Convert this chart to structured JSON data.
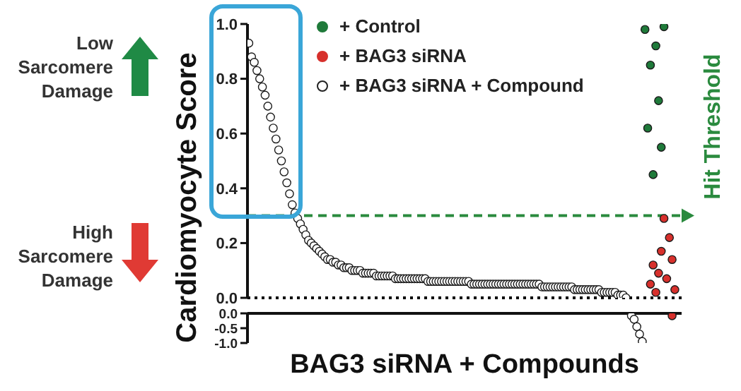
{
  "chart_data": [
    {
      "type": "scatter",
      "ylabel": "Cardiomyocyte Score",
      "annotations": [
        "Low Sarcomere Damage",
        "High Sarcomere Damage"
      ],
      "categories": [
        null,
        null,
        null,
        null,
        null,
        null,
        null,
        null,
        null,
        null,
        null,
        null,
        null,
        null,
        null,
        null,
        null,
        null,
        null,
        null,
        null,
        null,
        null,
        null,
        null,
        null,
        null,
        null,
        null,
        null,
        null,
        null,
        null,
        null,
        null,
        null,
        null,
        null,
        null,
        null,
        null,
        null,
        null,
        null,
        null,
        null,
        null,
        null,
        null,
        null,
        null,
        null,
        null,
        null,
        null,
        null,
        null,
        null,
        null,
        null,
        null,
        null,
        null,
        null,
        null,
        null,
        null,
        null,
        null,
        null,
        null,
        null,
        null,
        null,
        null,
        null,
        null,
        null,
        null,
        null,
        null,
        null,
        null,
        null,
        null,
        null,
        null,
        null,
        null,
        null,
        null,
        null,
        null,
        null,
        null,
        null,
        null,
        null,
        null,
        null,
        null,
        null,
        null,
        null,
        null,
        null,
        null,
        null,
        null,
        null,
        null,
        null,
        null,
        null,
        null,
        null,
        null,
        null,
        null,
        null,
        null,
        null,
        null,
        null,
        null,
        null,
        null,
        null,
        null,
        null,
        null,
        null,
        null,
        null,
        null,
        null,
        null,
        null,
        null,
        null,
        null,
        null,
        null,
        null,
        null,
        null,
        null,
        null,
        null,
        null,
        null,
        null,
        null,
        null,
        null,
        null,
        null,
        null,
        null,
        null
      ],
      "series": [
        {
          "name": "+ Control",
          "color": "#1f7a3a",
          "values": [
            null,
            null,
            null,
            null,
            null,
            null,
            null,
            null,
            null,
            null,
            null,
            null,
            null,
            null,
            null,
            null,
            null,
            null,
            null,
            null,
            null,
            null,
            null,
            null,
            null,
            null,
            null,
            null,
            null,
            null,
            null,
            null,
            null,
            null,
            null,
            null,
            null,
            null,
            null,
            null,
            null,
            null,
            null,
            null,
            null,
            null,
            null,
            null,
            null,
            null,
            null,
            null,
            null,
            null,
            null,
            null,
            null,
            null,
            null,
            null,
            null,
            null,
            null,
            null,
            null,
            null,
            null,
            null,
            null,
            null,
            null,
            null,
            null,
            null,
            null,
            null,
            null,
            null,
            null,
            null,
            null,
            null,
            null,
            null,
            null,
            null,
            null,
            null,
            null,
            null,
            null,
            null,
            null,
            null,
            null,
            null,
            null,
            null,
            null,
            null,
            null,
            null,
            null,
            null,
            null,
            null,
            null,
            null,
            null,
            null,
            null,
            null,
            null,
            null,
            null,
            null,
            null,
            null,
            null,
            null,
            null,
            null,
            null,
            null,
            null,
            null,
            null,
            null,
            null,
            null,
            null,
            null,
            null,
            null,
            null,
            null,
            null,
            null,
            null,
            null,
            null,
            null,
            null,
            null,
            null,
            null,
            0.98,
            0.62,
            0.85,
            0.45,
            0.92,
            0.72,
            0.55,
            0.99,
            null,
            null,
            null,
            null,
            null,
            null
          ]
        },
        {
          "name": "+ BAG3 siRNA",
          "color": "#d7302c",
          "values": [
            null,
            null,
            null,
            null,
            null,
            null,
            null,
            null,
            null,
            null,
            null,
            null,
            null,
            null,
            null,
            null,
            null,
            null,
            null,
            null,
            null,
            null,
            null,
            null,
            null,
            null,
            null,
            null,
            null,
            null,
            null,
            null,
            null,
            null,
            null,
            null,
            null,
            null,
            null,
            null,
            null,
            null,
            null,
            null,
            null,
            null,
            null,
            null,
            null,
            null,
            null,
            null,
            null,
            null,
            null,
            null,
            null,
            null,
            null,
            null,
            null,
            null,
            null,
            null,
            null,
            null,
            null,
            null,
            null,
            null,
            null,
            null,
            null,
            null,
            null,
            null,
            null,
            null,
            null,
            null,
            null,
            null,
            null,
            null,
            null,
            null,
            null,
            null,
            null,
            null,
            null,
            null,
            null,
            null,
            null,
            null,
            null,
            null,
            null,
            null,
            null,
            null,
            null,
            null,
            null,
            null,
            null,
            null,
            null,
            null,
            null,
            null,
            null,
            null,
            null,
            null,
            null,
            null,
            null,
            null,
            null,
            null,
            null,
            null,
            null,
            null,
            null,
            null,
            null,
            null,
            null,
            null,
            null,
            null,
            null,
            null,
            null,
            null,
            null,
            null,
            null,
            null,
            null,
            null,
            null,
            null,
            null,
            null,
            0.05,
            0.12,
            0.02,
            0.09,
            0.17,
            0.29,
            0.07,
            0.22,
            0.14,
            0.03,
            null,
            null
          ]
        },
        {
          "name": "+ BAG3 siRNA + Compound",
          "color": "#ffffff",
          "values": [
            0.93,
            0.88,
            0.86,
            0.83,
            0.8,
            0.77,
            0.74,
            0.7,
            0.66,
            0.62,
            0.58,
            0.54,
            0.5,
            0.46,
            0.42,
            0.38,
            0.34,
            0.31,
            0.29,
            0.27,
            0.25,
            0.23,
            0.21,
            0.2,
            0.19,
            0.18,
            0.17,
            0.16,
            0.15,
            0.14,
            0.14,
            0.13,
            0.13,
            0.12,
            0.12,
            0.11,
            0.11,
            0.11,
            0.1,
            0.1,
            0.1,
            0.1,
            0.09,
            0.09,
            0.09,
            0.09,
            0.09,
            0.08,
            0.08,
            0.08,
            0.08,
            0.08,
            0.08,
            0.08,
            0.07,
            0.07,
            0.07,
            0.07,
            0.07,
            0.07,
            0.07,
            0.07,
            0.07,
            0.07,
            0.07,
            0.07,
            0.06,
            0.06,
            0.06,
            0.06,
            0.06,
            0.06,
            0.06,
            0.06,
            0.06,
            0.06,
            0.06,
            0.06,
            0.06,
            0.06,
            0.06,
            0.06,
            0.05,
            0.05,
            0.05,
            0.05,
            0.05,
            0.05,
            0.05,
            0.05,
            0.05,
            0.05,
            0.05,
            0.05,
            0.05,
            0.05,
            0.05,
            0.05,
            0.05,
            0.05,
            0.05,
            0.05,
            0.05,
            0.05,
            0.05,
            0.05,
            0.05,
            0.05,
            0.04,
            0.04,
            0.04,
            0.04,
            0.04,
            0.04,
            0.04,
            0.04,
            0.04,
            0.04,
            0.04,
            0.04,
            0.03,
            0.03,
            0.03,
            0.03,
            0.03,
            0.03,
            0.03,
            0.03,
            0.03,
            0.03,
            0.02,
            0.02,
            0.02,
            0.02,
            0.02,
            0.02,
            0.01,
            0.01,
            0.01,
            0,
            null,
            null,
            null,
            null,
            null,
            null,
            null,
            null,
            null,
            null,
            null,
            null,
            null,
            null,
            null,
            null,
            null,
            null,
            null,
            null
          ]
        }
      ],
      "ylim": [
        0,
        1
      ],
      "yticks": [
        {
          "value": 0,
          "label": "0.0"
        },
        0.2,
        0.4,
        0.6,
        0.8,
        {
          "value": 1,
          "label": "1.0"
        }
      ],
      "ref_lines": [
        {
          "axis": "y",
          "value": 0,
          "line_style": "dotted",
          "color": "#000000"
        },
        {
          "axis": "y",
          "value": 0.3,
          "label": "Hit Threshold",
          "line_style": "dashed",
          "color": "#2a8a3e"
        }
      ],
      "marker": "circle",
      "grid": false,
      "legend": "top"
    },
    {
      "type": "scatter",
      "xlabel": "BAG3 siRNA + Compounds",
      "categories": [
        null,
        null,
        null,
        null,
        null,
        null,
        null,
        null,
        null,
        null,
        null,
        null,
        null,
        null,
        null,
        null,
        null,
        null,
        null,
        null,
        null,
        null,
        null,
        null,
        null,
        null,
        null,
        null,
        null,
        null,
        null,
        null,
        null,
        null,
        null,
        null,
        null,
        null,
        null,
        null,
        null,
        null,
        null,
        null,
        null,
        null,
        null,
        null,
        null,
        null,
        null,
        null,
        null,
        null,
        null,
        null,
        null,
        null,
        null,
        null,
        null,
        null,
        null,
        null,
        null,
        null,
        null,
        null,
        null,
        null,
        null,
        null,
        null,
        null,
        null,
        null,
        null,
        null,
        null,
        null,
        null,
        null,
        null,
        null,
        null,
        null,
        null,
        null,
        null,
        null,
        null,
        null,
        null,
        null,
        null,
        null,
        null,
        null,
        null,
        null,
        null,
        null,
        null,
        null,
        null,
        null,
        null,
        null,
        null,
        null,
        null,
        null,
        null,
        null,
        null,
        null,
        null,
        null,
        null,
        null,
        null,
        null,
        null,
        null,
        null,
        null,
        null,
        null,
        null,
        null,
        null,
        null,
        null,
        null,
        null,
        null,
        null,
        null,
        null,
        null,
        null,
        null,
        null,
        null,
        null,
        null,
        null,
        null,
        null,
        null,
        null,
        null,
        null,
        null,
        null,
        null,
        null,
        null,
        null,
        null
      ],
      "series": [
        {
          "color": "#d7302c",
          "values": [
            null,
            null,
            null,
            null,
            null,
            null,
            null,
            null,
            null,
            null,
            null,
            null,
            null,
            null,
            null,
            null,
            null,
            null,
            null,
            null,
            null,
            null,
            null,
            null,
            null,
            null,
            null,
            null,
            null,
            null,
            null,
            null,
            null,
            null,
            null,
            null,
            null,
            null,
            null,
            null,
            null,
            null,
            null,
            null,
            null,
            null,
            null,
            null,
            null,
            null,
            null,
            null,
            null,
            null,
            null,
            null,
            null,
            null,
            null,
            null,
            null,
            null,
            null,
            null,
            null,
            null,
            null,
            null,
            null,
            null,
            null,
            null,
            null,
            null,
            null,
            null,
            null,
            null,
            null,
            null,
            null,
            null,
            null,
            null,
            null,
            null,
            null,
            null,
            null,
            null,
            null,
            null,
            null,
            null,
            null,
            null,
            null,
            null,
            null,
            null,
            null,
            null,
            null,
            null,
            null,
            null,
            null,
            null,
            null,
            null,
            null,
            null,
            null,
            null,
            null,
            null,
            null,
            null,
            null,
            null,
            null,
            null,
            null,
            null,
            null,
            null,
            null,
            null,
            null,
            null,
            null,
            null,
            null,
            null,
            null,
            null,
            null,
            null,
            null,
            null,
            null,
            null,
            null,
            null,
            null,
            null,
            null,
            null,
            null,
            null,
            null,
            null,
            null,
            null,
            null,
            null,
            -0.08,
            null,
            null,
            null
          ]
        },
        {
          "color": "#ffffff",
          "values": [
            null,
            null,
            null,
            null,
            null,
            null,
            null,
            null,
            null,
            null,
            null,
            null,
            null,
            null,
            null,
            null,
            null,
            null,
            null,
            null,
            null,
            null,
            null,
            null,
            null,
            null,
            null,
            null,
            null,
            null,
            null,
            null,
            null,
            null,
            null,
            null,
            null,
            null,
            null,
            null,
            null,
            null,
            null,
            null,
            null,
            null,
            null,
            null,
            null,
            null,
            null,
            null,
            null,
            null,
            null,
            null,
            null,
            null,
            null,
            null,
            null,
            null,
            null,
            null,
            null,
            null,
            null,
            null,
            null,
            null,
            null,
            null,
            null,
            null,
            null,
            null,
            null,
            null,
            null,
            null,
            null,
            null,
            null,
            null,
            null,
            null,
            null,
            null,
            null,
            null,
            null,
            null,
            null,
            null,
            null,
            null,
            null,
            null,
            null,
            null,
            null,
            null,
            null,
            null,
            null,
            null,
            null,
            null,
            null,
            null,
            null,
            null,
            null,
            null,
            null,
            null,
            null,
            null,
            null,
            null,
            null,
            null,
            null,
            null,
            null,
            null,
            null,
            null,
            null,
            null,
            null,
            null,
            null,
            null,
            null,
            null,
            null,
            null,
            null,
            null,
            null,
            -0.08,
            -0.2,
            -0.45,
            -0.7,
            -0.95,
            null,
            null,
            null,
            null,
            null,
            null,
            null,
            null,
            null,
            null,
            null,
            null,
            null,
            null
          ]
        }
      ],
      "ylim": [
        -1,
        0
      ],
      "yticks": [
        {
          "value": 0,
          "label": "0.0"
        },
        {
          "value": -0.5,
          "label": "-0.5"
        },
        {
          "value": -1,
          "label": "-1.0"
        }
      ],
      "marker": "circle",
      "grid": false
    }
  ]
}
